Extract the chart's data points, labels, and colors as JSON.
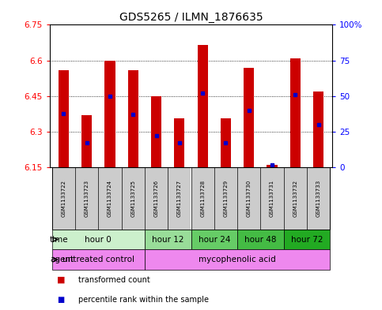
{
  "title": "GDS5265 / ILMN_1876635",
  "samples": [
    "GSM1133722",
    "GSM1133723",
    "GSM1133724",
    "GSM1133725",
    "GSM1133726",
    "GSM1133727",
    "GSM1133728",
    "GSM1133729",
    "GSM1133730",
    "GSM1133731",
    "GSM1133732",
    "GSM1133733"
  ],
  "bar_tops": [
    6.56,
    6.37,
    6.6,
    6.56,
    6.45,
    6.355,
    6.665,
    6.355,
    6.57,
    6.16,
    6.61,
    6.47
  ],
  "bar_base": 6.15,
  "percentile_values": [
    0.38,
    0.17,
    0.5,
    0.37,
    0.22,
    0.17,
    0.52,
    0.17,
    0.4,
    0.02,
    0.51,
    0.3
  ],
  "ylim": [
    6.15,
    6.75
  ],
  "yticks": [
    6.15,
    6.3,
    6.45,
    6.6,
    6.75
  ],
  "ytick_labels_left": [
    "6.15",
    "6.3",
    "6.45",
    "6.6",
    "6.75"
  ],
  "ytick_labels_right": [
    "0",
    "25",
    "50",
    "75",
    "100%"
  ],
  "time_groups": [
    {
      "label": "hour 0",
      "start": 0,
      "end": 4,
      "color": "#ccf0cc"
    },
    {
      "label": "hour 12",
      "start": 4,
      "end": 6,
      "color": "#99dd99"
    },
    {
      "label": "hour 24",
      "start": 6,
      "end": 8,
      "color": "#66cc66"
    },
    {
      "label": "hour 48",
      "start": 8,
      "end": 10,
      "color": "#44bb44"
    },
    {
      "label": "hour 72",
      "start": 10,
      "end": 12,
      "color": "#22aa22"
    }
  ],
  "agent_groups": [
    {
      "label": "untreated control",
      "start": 0,
      "end": 4,
      "color": "#ee88ee"
    },
    {
      "label": "mycophenolic acid",
      "start": 4,
      "end": 12,
      "color": "#ee88ee"
    }
  ],
  "bar_color": "#cc0000",
  "percentile_color": "#0000cc",
  "sample_bg_color": "#cccccc",
  "title_fontsize": 10,
  "tick_fontsize": 7.5,
  "sample_fontsize": 5.0,
  "row_fontsize": 7.5
}
